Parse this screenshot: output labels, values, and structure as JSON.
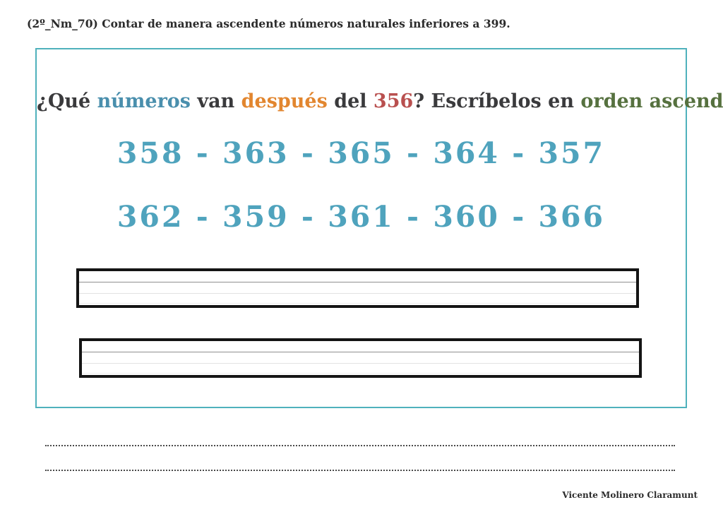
{
  "header": {
    "exercise_label": "(2º_Nm_70) Contar de manera ascendente números naturales inferiores a 399."
  },
  "question": {
    "segments": [
      {
        "text": "¿Qué ",
        "color": "#3a3a3c"
      },
      {
        "text": "números",
        "color": "#4a8fad"
      },
      {
        "text": " van ",
        "color": "#3a3a3c"
      },
      {
        "text": "después",
        "color": "#e2862f"
      },
      {
        "text": " del ",
        "color": "#3a3a3c"
      },
      {
        "text": "356",
        "color": "#b9504f"
      },
      {
        "text": "? Escríbelos en ",
        "color": "#3a3a3c"
      },
      {
        "text": "orden ascendente:",
        "color": "#56713f"
      }
    ]
  },
  "sequences": {
    "row1": "358 - 363 - 365 - 364 - 357",
    "row2": "362 - 359 - 361 - 360 - 366",
    "color": "#4fa3bd"
  },
  "footer": {
    "author": "Vicente Molinero Claramunt"
  },
  "colors": {
    "frame_border": "#4fb1bc",
    "writing_box_border": "#141414",
    "guide_line_dark": "#8f8f8f",
    "guide_line_light": "#e2e2e2",
    "dotted_line": "#4a4a4a",
    "header_text": "#2b2b2b"
  }
}
